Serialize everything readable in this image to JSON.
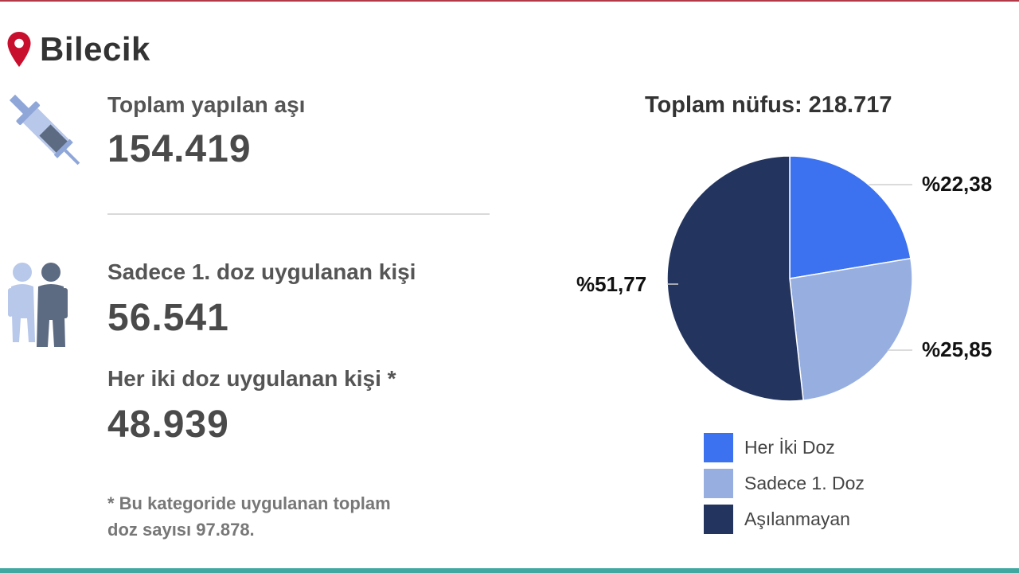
{
  "header": {
    "city": "Bilecik",
    "pin_color": "#c8102e"
  },
  "stats": {
    "total_vaccine_label": "Toplam yapılan aşı",
    "total_vaccine_value": "154.419",
    "first_dose_label": "Sadece 1. doz uygulanan kişi",
    "first_dose_value": "56.541",
    "both_doses_label": "Her iki doz uygulanan kişi *",
    "both_doses_value": "48.939",
    "footnote_line1": "* Bu kategoride uygulanan toplam",
    "footnote_line2": "doz sayısı 97.878."
  },
  "icons": {
    "syringe": "syringe-icon",
    "people": "people-icon",
    "pin": "location-pin-icon"
  },
  "chart_data": {
    "type": "pie",
    "title": "Toplam nüfus: 218.717",
    "slices": [
      {
        "name": "Her İki Doz",
        "value": 22.38,
        "label": "%22,38",
        "color": "#3c72f0"
      },
      {
        "name": "Sadece 1. Doz",
        "value": 25.85,
        "label": "%25,85",
        "color": "#97afe0"
      },
      {
        "name": "Aşılanmayan",
        "value": 51.77,
        "label": "%51,77",
        "color": "#23345f"
      }
    ],
    "legend_placement": "bottom"
  }
}
